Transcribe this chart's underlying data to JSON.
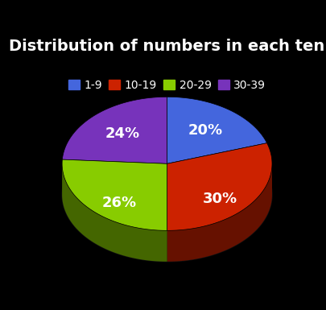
{
  "title": "Distribution of numbers in each ten",
  "labels": [
    "1-9",
    "10-19",
    "20-29",
    "30-39"
  ],
  "values": [
    20,
    30,
    26,
    24
  ],
  "colors": [
    "#4466dd",
    "#cc2200",
    "#88cc00",
    "#7733bb"
  ],
  "dark_colors": [
    "#223388",
    "#661100",
    "#446600",
    "#3b1566"
  ],
  "pct_labels": [
    "20%",
    "30%",
    "26%",
    "24%"
  ],
  "background_color": "#000000",
  "text_color": "#ffffff",
  "title_fontsize": 14,
  "legend_fontsize": 10,
  "pct_fontsize": 13
}
